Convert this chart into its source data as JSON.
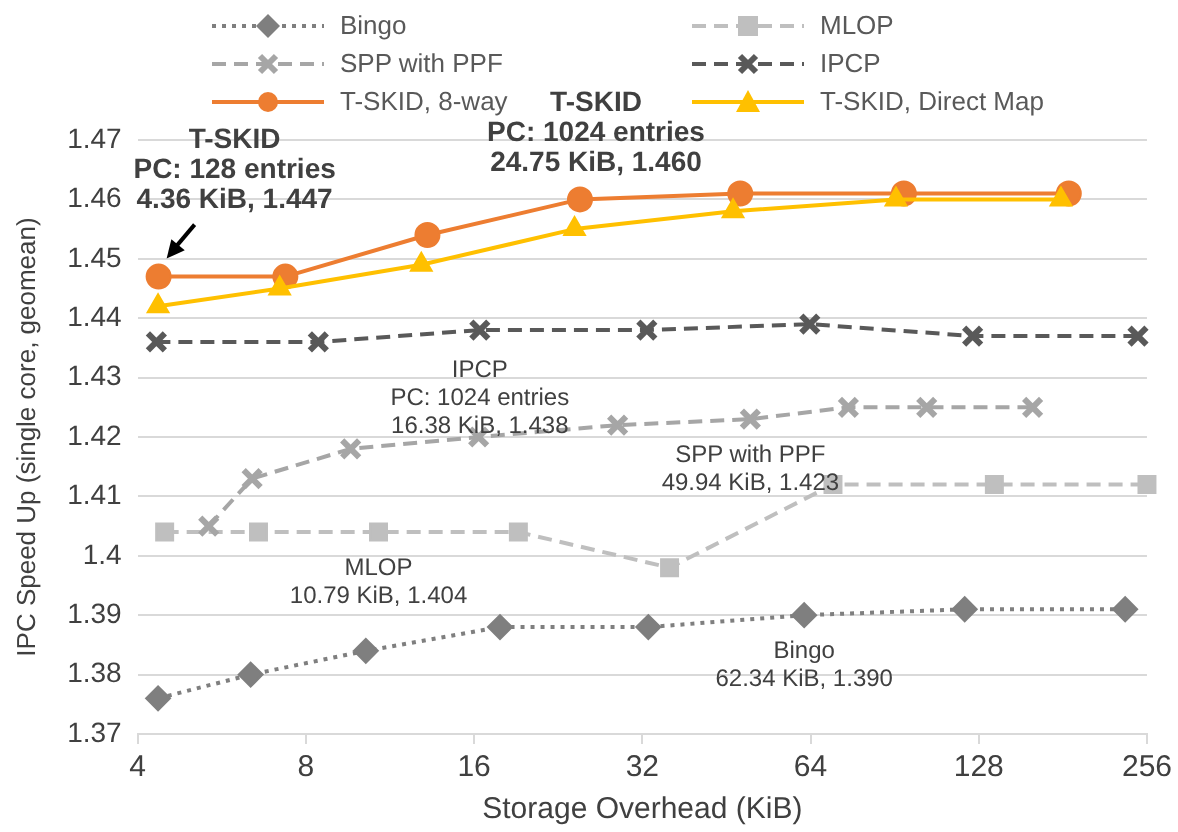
{
  "chart_data": {
    "type": "line",
    "xlabel": "Storage Overhead (KiB)",
    "ylabel": "IPC Speed Up (single core, geomean)",
    "log": "x",
    "xlim": [
      4,
      256
    ],
    "xticks": [
      4,
      8,
      16,
      32,
      64,
      128,
      256
    ],
    "ylim": [
      1.37,
      1.47
    ],
    "yticks": [
      1.37,
      1.38,
      1.39,
      1.4,
      1.41,
      1.42,
      1.43,
      1.44,
      1.45,
      1.46,
      1.47
    ],
    "grid": "y",
    "legend": "top",
    "series": [
      {
        "name": "Bingo",
        "color": "#7f7f7f",
        "marker": "diamond",
        "line_style": "dotted",
        "x": [
          4.35,
          6.37,
          10.24,
          17.8,
          32.8,
          62.34,
          120.8,
          234
        ],
        "values": [
          1.376,
          1.38,
          1.384,
          1.388,
          1.388,
          1.39,
          1.391,
          1.391
        ]
      },
      {
        "name": "MLOP",
        "color": "#bfbfbf",
        "marker": "square",
        "line_style": "dashed",
        "x": [
          4.47,
          6.58,
          10.79,
          19.2,
          35.8,
          70.2,
          136.5,
          256
        ],
        "values": [
          1.404,
          1.404,
          1.404,
          1.404,
          1.398,
          1.412,
          1.412,
          1.412
        ]
      },
      {
        "name": "SPP with PPF",
        "color": "#a6a6a6",
        "marker": "cross",
        "line_style": "dashed",
        "x": [
          5.36,
          6.41,
          9.62,
          16.3,
          28.9,
          49.94,
          74.8,
          103.3,
          159.8
        ],
        "values": [
          1.405,
          1.413,
          1.418,
          1.42,
          1.422,
          1.423,
          1.425,
          1.425,
          1.425
        ]
      },
      {
        "name": "IPCP",
        "color": "#595959",
        "marker": "cross",
        "line_style": "dashed",
        "x": [
          4.32,
          8.42,
          16.38,
          32.6,
          63.8,
          124.8,
          246.7
        ],
        "values": [
          1.436,
          1.436,
          1.438,
          1.438,
          1.439,
          1.437,
          1.437
        ]
      },
      {
        "name": "T-SKID, 8-way",
        "color": "#ed7d31",
        "marker": "circle",
        "line_style": "solid",
        "x": [
          4.36,
          7.35,
          13.2,
          24.75,
          47.9,
          94.0,
          185.5
        ],
        "values": [
          1.447,
          1.447,
          1.454,
          1.46,
          1.461,
          1.461,
          1.461
        ]
      },
      {
        "name": "T-SKID, Direct Map",
        "color": "#ffc000",
        "marker": "triangle",
        "line_style": "solid",
        "x": [
          4.35,
          7.18,
          12.87,
          24.2,
          46.5,
          91.0,
          179.6
        ],
        "values": [
          1.442,
          1.445,
          1.449,
          1.455,
          1.458,
          1.46,
          1.46
        ]
      }
    ],
    "annotations": [
      {
        "text": "T-SKID\nPC: 128 entries\n4.36 KiB, 1.447",
        "x": 4.36,
        "y": 1.447
      },
      {
        "text": "T-SKID\nPC: 1024 entries\n24.75 KiB, 1.460",
        "x": 24.75,
        "y": 1.46
      },
      {
        "text": "IPCP\nPC: 1024 entries\n16.38 KiB, 1.438",
        "x": 16.38,
        "y": 1.438
      },
      {
        "text": "SPP with PPF\n49.94 KiB, 1.423",
        "x": 49.94,
        "y": 1.423
      },
      {
        "text": "MLOP\n10.79 KiB, 1.404",
        "x": 10.79,
        "y": 1.404
      },
      {
        "text": "Bingo\n62.34 KiB, 1.390",
        "x": 62.34,
        "y": 1.39
      }
    ]
  }
}
